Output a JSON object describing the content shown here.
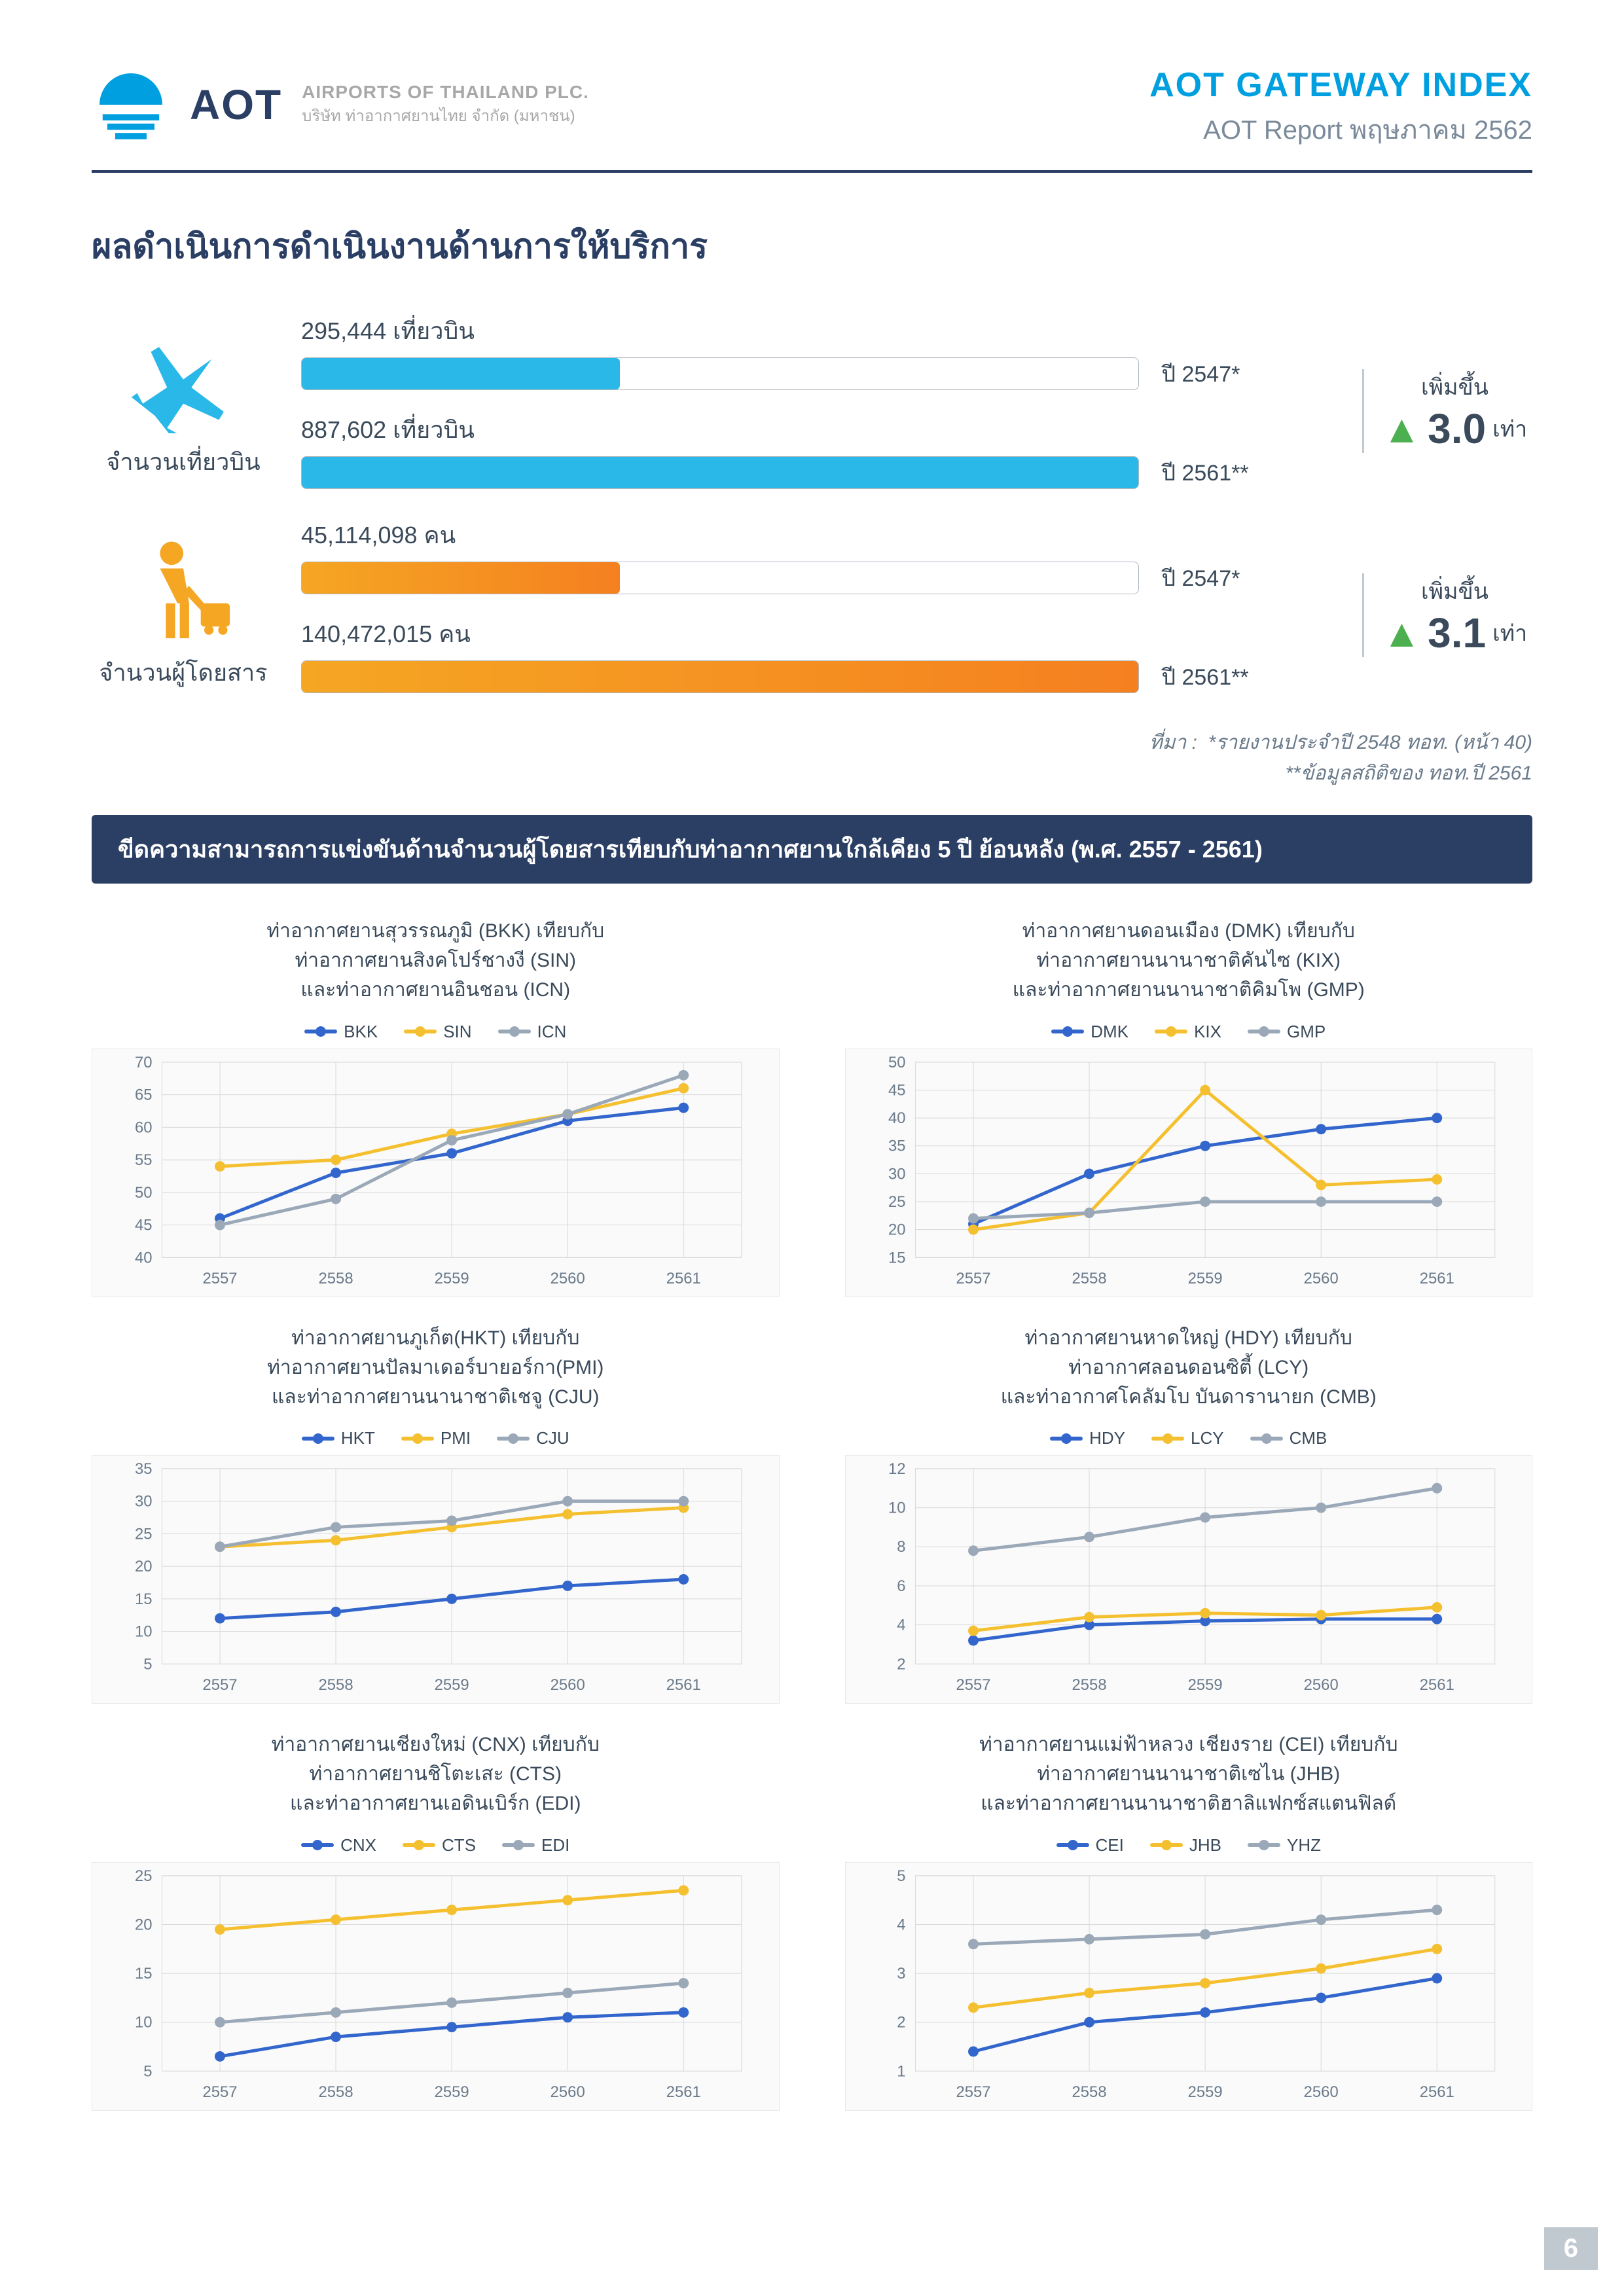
{
  "header": {
    "logo_primary": "AOT",
    "logo_sub_en": "AIRPORTS OF THAILAND PLC.",
    "logo_sub_th": "บริษัท ท่าอากาศยานไทย จำกัด (มหาชน)",
    "title": "AOT GATEWAY INDEX",
    "subtitle": "AOT Report  พฤษภาคม 2562"
  },
  "section_title": "ผลดำเนินการดำเนินงานด้านการให้บริการ",
  "stats": [
    {
      "icon_label": "จำนวนเที่ยวบิน",
      "color1": "#29b8e8",
      "color2": "#29b8e8",
      "bar1_label": "295,444 เที่ยวบิน",
      "bar1_pct": 38,
      "bar1_year": "ปี 2547*",
      "bar2_label": "887,602 เที่ยวบิน",
      "bar2_pct": 100,
      "bar2_year": "ปี 2561**",
      "growth_top": "เพิ่มขึ้น",
      "growth_num": "3.0",
      "growth_suffix": "เท่า",
      "growth_arrow_color": "#4cb050"
    },
    {
      "icon_label": "จำนวนผู้โดยสาร",
      "color1": "#f5a623",
      "color2": "#f58020",
      "bar1_label": "45,114,098 คน",
      "bar1_pct": 38,
      "bar1_year": "ปี 2547*",
      "bar2_label": "140,472,015 คน",
      "bar2_pct": 100,
      "bar2_year": "ปี 2561**",
      "growth_top": "เพิ่มขึ้น",
      "growth_num": "3.1",
      "growth_suffix": "เท่า",
      "growth_arrow_color": "#4cb050"
    }
  ],
  "footnote_prefix": "ที่มา :",
  "footnote1": "*รายงานประจำปี 2548 ทอท. (หน้า 40)",
  "footnote2": "**ข้อมูลสถิติของ ทอท.ปี 2561",
  "banner": "ขีดความสามารถการแข่งขันด้านจำนวนผู้โดยสารเทียบกับท่าอากาศยานใกล้เคียง 5 ปี ย้อนหลัง (พ.ศ. 2557 - 2561)",
  "chart_common": {
    "x_categories": [
      "2557",
      "2558",
      "2559",
      "2560",
      "2561"
    ],
    "series_colors": [
      "#3366cc",
      "#f5c030",
      "#9aa8b8"
    ],
    "grid_color": "#d8d8d8",
    "bg_color": "#fafafa",
    "axis_font_size": 24,
    "line_width": 5,
    "marker_size": 8
  },
  "charts": [
    {
      "title": "ท่าอากาศยานสุวรรณภูมิ (BKK) เทียบกับ\nท่าอากาศยานสิงคโปร์ชางงี (SIN)\nและท่าอากาศยานอินชอน (ICN)",
      "series_labels": [
        "BKK",
        "SIN",
        "ICN"
      ],
      "ylim": [
        40,
        70
      ],
      "ytick_step": 5,
      "data": [
        [
          46,
          53,
          56,
          61,
          63
        ],
        [
          54,
          55,
          59,
          62,
          66
        ],
        [
          45,
          49,
          58,
          62,
          68
        ]
      ]
    },
    {
      "title": "ท่าอากาศยานดอนเมือง (DMK) เทียบกับ\nท่าอากาศยานนานาชาติคันไซ (KIX)\nและท่าอากาศยานนานาชาติคิมโพ (GMP)",
      "series_labels": [
        "DMK",
        "KIX",
        "GMP"
      ],
      "ylim": [
        15,
        50
      ],
      "ytick_step": 5,
      "data": [
        [
          21,
          30,
          35,
          38,
          40
        ],
        [
          20,
          23,
          45,
          28,
          29
        ],
        [
          22,
          23,
          25,
          25,
          25
        ]
      ]
    },
    {
      "title": "ท่าอากาศยานภูเก็ต(HKT) เทียบกับ\nท่าอากาศยานปัลมาเดอร์บายอร์กา(PMI)\nและท่าอากาศยานนานาชาติเชจู (CJU)",
      "series_labels": [
        "HKT",
        "PMI",
        "CJU"
      ],
      "ylim": [
        5,
        35
      ],
      "ytick_step": 5,
      "data": [
        [
          12,
          13,
          15,
          17,
          18
        ],
        [
          23,
          24,
          26,
          28,
          29
        ],
        [
          23,
          26,
          27,
          30,
          30
        ]
      ]
    },
    {
      "title": "ท่าอากาศยานหาดใหญ่ (HDY) เทียบกับ\nท่าอากาศลอนดอนซิตี้ (LCY)\nและท่าอากาศโคลัมโบ บันดารานายก (CMB)",
      "series_labels": [
        "HDY",
        "LCY",
        "CMB"
      ],
      "ylim": [
        2,
        12
      ],
      "ytick_step": 2,
      "data": [
        [
          3.2,
          4.0,
          4.2,
          4.3,
          4.3
        ],
        [
          3.7,
          4.4,
          4.6,
          4.5,
          4.9
        ],
        [
          7.8,
          8.5,
          9.5,
          10.0,
          11.0
        ]
      ]
    },
    {
      "title": "ท่าอากาศยานเชียงใหม่ (CNX) เทียบกับ\nท่าอากาศยานชิโตะเสะ (CTS)\nและท่าอากาศยานเอดินเบิร์ก (EDI)",
      "series_labels": [
        "CNX",
        "CTS",
        "EDI"
      ],
      "ylim": [
        5,
        25
      ],
      "ytick_step": 5,
      "data": [
        [
          6.5,
          8.5,
          9.5,
          10.5,
          11.0
        ],
        [
          19.5,
          20.5,
          21.5,
          22.5,
          23.5
        ],
        [
          10.0,
          11.0,
          12.0,
          13.0,
          14.0
        ]
      ]
    },
    {
      "title": "ท่าอากาศยานแม่ฟ้าหลวง เชียงราย (CEI) เทียบกับ\nท่าอากาศยานนานาชาติเซไน (JHB)\nและท่าอากาศยานนานาชาติฮาลิแฟกซ์สแตนฟิลด์",
      "series_labels": [
        "CEI",
        "JHB",
        "YHZ"
      ],
      "ylim": [
        1,
        5
      ],
      "ytick_step": 1,
      "data": [
        [
          1.4,
          2.0,
          2.2,
          2.5,
          2.9
        ],
        [
          2.3,
          2.6,
          2.8,
          3.1,
          3.5
        ],
        [
          3.6,
          3.7,
          3.8,
          4.1,
          4.3
        ]
      ]
    }
  ],
  "page_num": "6"
}
